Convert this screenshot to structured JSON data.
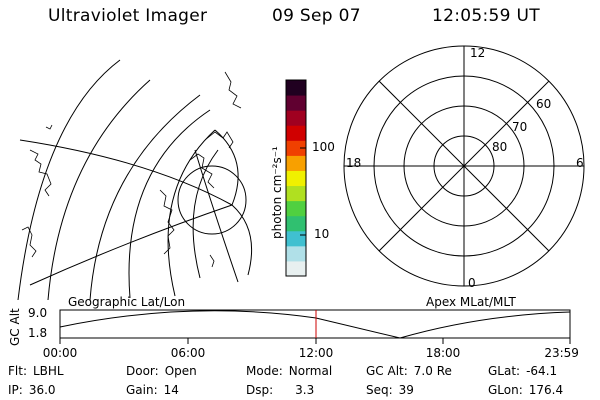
{
  "header": {
    "instrument": "Ultraviolet Imager",
    "date": "09 Sep 07",
    "time": "12:05:59 UT"
  },
  "geo_map": {
    "label": "Geographic Lat/Lon"
  },
  "colorbar": {
    "label": "photon cm⁻²s⁻¹",
    "ticks": [
      "100",
      "10"
    ],
    "colors": [
      "#e8f0f0",
      "#b0e0e8",
      "#40c0d0",
      "#30c070",
      "#50d040",
      "#b0e020",
      "#f0f000",
      "#f8a000",
      "#f04000",
      "#d00000",
      "#a00020",
      "#600030",
      "#200020"
    ]
  },
  "polar_plot": {
    "label": "Apex MLat/MLT",
    "mlt_labels": [
      "12",
      "18",
      "6",
      "0"
    ],
    "mlat_labels": [
      "60",
      "70",
      "80"
    ]
  },
  "altitude_strip": {
    "axis_label": "GC Alt",
    "y_ticks": [
      "9.0",
      "1.8"
    ],
    "x_ticks": [
      "00:00",
      "06:00",
      "12:00",
      "18:00",
      "23:59"
    ],
    "current_marker_color": "#cc0000"
  },
  "status": {
    "filter": {
      "key": "Flt:",
      "value": "LBHL"
    },
    "ip": {
      "key": "IP:",
      "value": "36.0"
    },
    "door": {
      "key": "Door:",
      "value": "Open"
    },
    "gain": {
      "key": "Gain:",
      "value": "14"
    },
    "mode": {
      "key": "Mode:",
      "value": "Normal"
    },
    "dsp": {
      "key": "Dsp:",
      "value": "3.3"
    },
    "gc_alt": {
      "key": "GC Alt:",
      "value": "7.0 Re"
    },
    "seq": {
      "key": "Seq:",
      "value": "39"
    },
    "glat": {
      "key": "GLat:",
      "value": "-64.1"
    },
    "glon": {
      "key": "GLon:",
      "value": "176.4"
    }
  }
}
